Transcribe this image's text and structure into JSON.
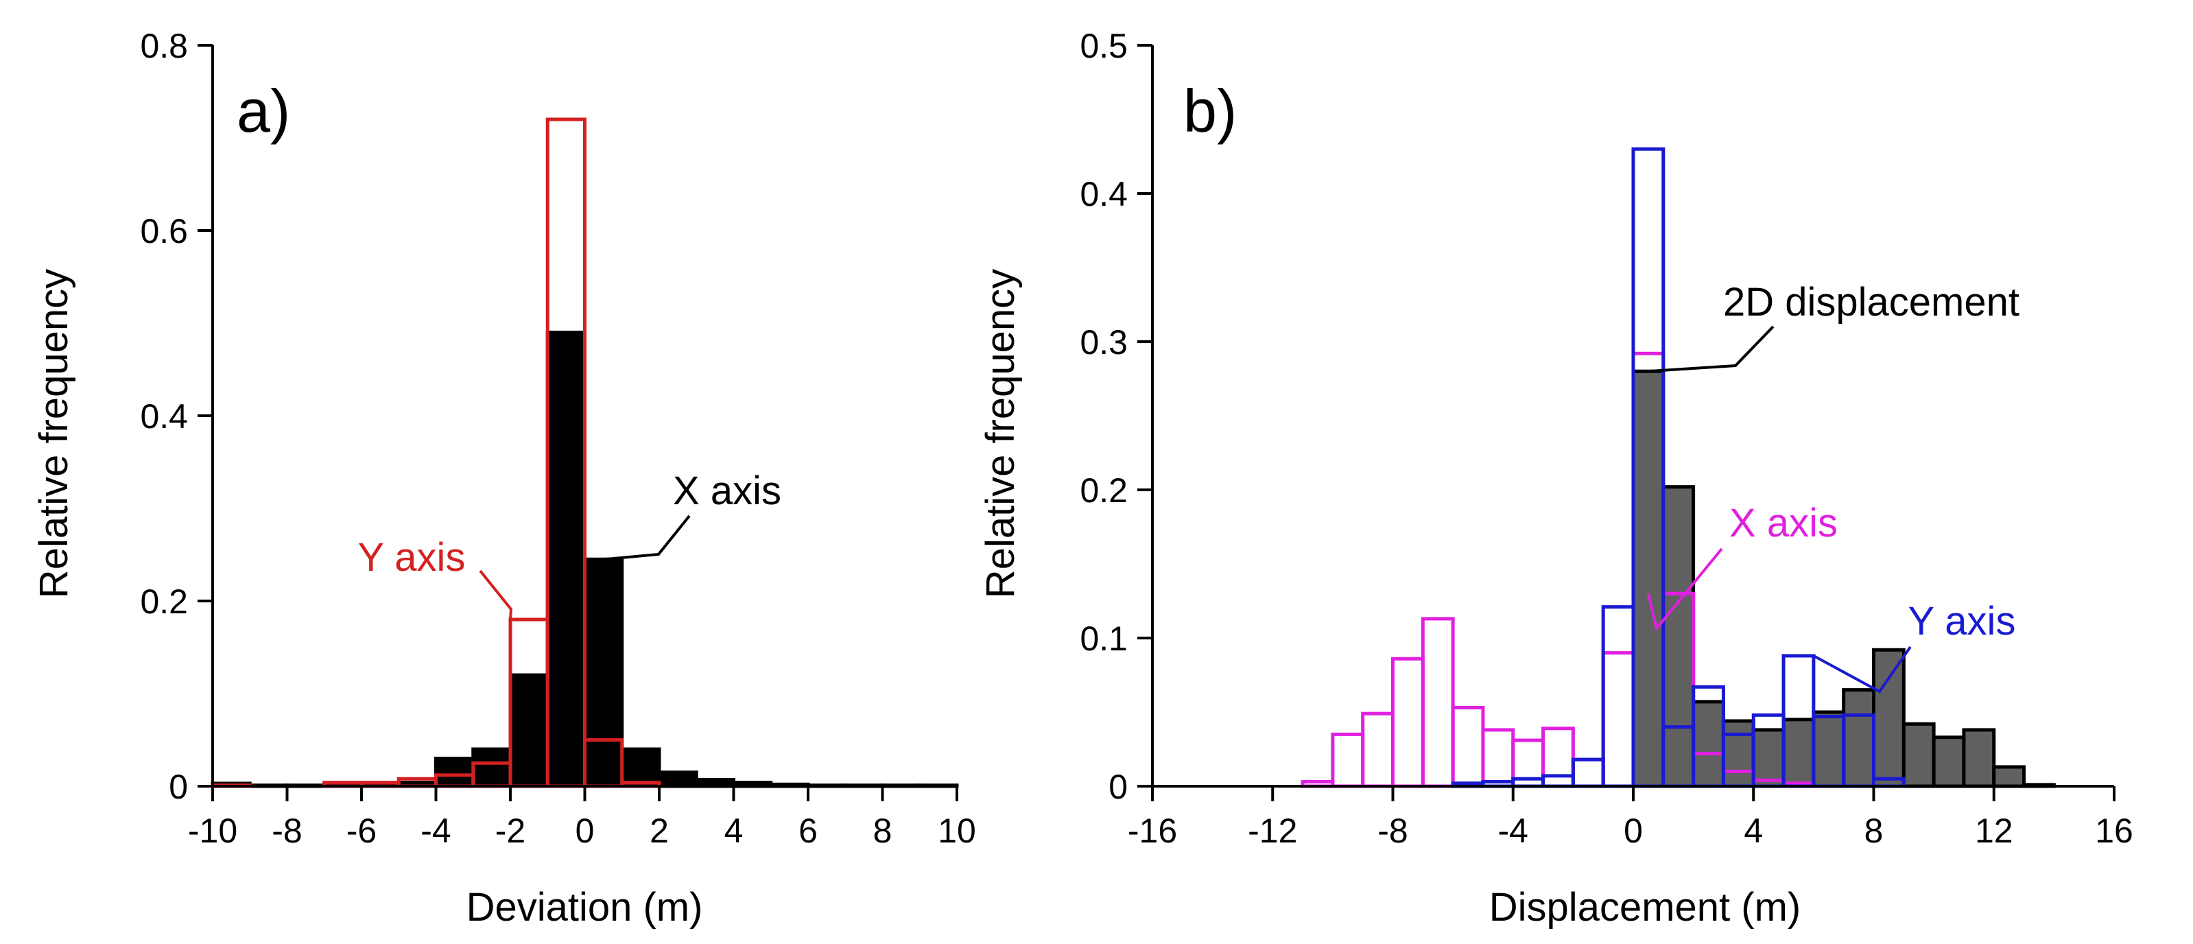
{
  "chart_data": [
    {
      "panel": "a)",
      "type": "bar",
      "title": "",
      "xlabel": "Deviation (m)",
      "ylabel": "Relative frequency",
      "xlim": [
        -10,
        10
      ],
      "ylim": [
        0,
        0.8
      ],
      "xticks": [
        -10,
        -8,
        -6,
        -4,
        -2,
        0,
        2,
        4,
        6,
        8,
        10
      ],
      "yticks": [
        0,
        0.2,
        0.4,
        0.6,
        0.8
      ],
      "ytick_labels": [
        "0",
        "0.2",
        "0.4",
        "0.6",
        "0.8"
      ],
      "bin_width": 1,
      "series": [
        {
          "name": "X axis",
          "style": "filled",
          "fill": "#000000",
          "stroke": "#000000",
          "bins": [
            {
              "x": -10,
              "value": 0.003
            },
            {
              "x": -9,
              "value": 0.001
            },
            {
              "x": -8,
              "value": 0.001
            },
            {
              "x": -7,
              "value": 0.002
            },
            {
              "x": -6,
              "value": 0.002
            },
            {
              "x": -5,
              "value": 0.004
            },
            {
              "x": -4,
              "value": 0.03
            },
            {
              "x": -3,
              "value": 0.04
            },
            {
              "x": -2,
              "value": 0.12
            },
            {
              "x": -1,
              "value": 0.49
            },
            {
              "x": 0,
              "value": 0.245
            },
            {
              "x": 1,
              "value": 0.04
            },
            {
              "x": 2,
              "value": 0.015
            },
            {
              "x": 3,
              "value": 0.007
            },
            {
              "x": 4,
              "value": 0.004
            },
            {
              "x": 5,
              "value": 0.002
            },
            {
              "x": 6,
              "value": 0.001
            },
            {
              "x": 7,
              "value": 0.001
            },
            {
              "x": 8,
              "value": 0.001
            },
            {
              "x": 9,
              "value": 0.001
            }
          ]
        },
        {
          "name": "Y axis",
          "style": "outline",
          "fill": "none",
          "stroke": "#d42020",
          "bins": [
            {
              "x": -10,
              "value": 0.001
            },
            {
              "x": -7,
              "value": 0.004
            },
            {
              "x": -6,
              "value": 0.004
            },
            {
              "x": -5,
              "value": 0.008
            },
            {
              "x": -4,
              "value": 0.012
            },
            {
              "x": -3,
              "value": 0.025
            },
            {
              "x": -2,
              "value": 0.18
            },
            {
              "x": -1,
              "value": 0.72
            },
            {
              "x": 0,
              "value": 0.05
            },
            {
              "x": 1,
              "value": 0.004
            }
          ]
        }
      ],
      "annotations": [
        {
          "text": "Y axis",
          "color": "#d42020",
          "target_x": -2,
          "target_y": 0.18
        },
        {
          "text": "X axis",
          "color": "#000000",
          "target_x": 0.5,
          "target_y": 0.245
        }
      ]
    },
    {
      "panel": "b)",
      "type": "bar",
      "title": "",
      "xlabel": "Displacement (m)",
      "ylabel": "Relative frequency",
      "xlim": [
        -16,
        16
      ],
      "ylim": [
        0,
        0.5
      ],
      "xticks": [
        -16,
        -12,
        -8,
        -4,
        0,
        4,
        8,
        12,
        16
      ],
      "yticks": [
        0,
        0.1,
        0.2,
        0.3,
        0.4,
        0.5
      ],
      "ytick_labels": [
        "0",
        "0.1",
        "0.2",
        "0.3",
        "0.4",
        "0.5"
      ],
      "bin_width": 1,
      "series": [
        {
          "name": "2D displacement",
          "style": "filled",
          "fill": "#606060",
          "stroke": "#000000",
          "bins": [
            {
              "x": 0,
              "value": 0.28
            },
            {
              "x": 1,
              "value": 0.202
            },
            {
              "x": 2,
              "value": 0.057
            },
            {
              "x": 3,
              "value": 0.044
            },
            {
              "x": 4,
              "value": 0.038
            },
            {
              "x": 5,
              "value": 0.045
            },
            {
              "x": 6,
              "value": 0.05
            },
            {
              "x": 7,
              "value": 0.065
            },
            {
              "x": 8,
              "value": 0.092
            },
            {
              "x": 9,
              "value": 0.042
            },
            {
              "x": 10,
              "value": 0.033
            },
            {
              "x": 11,
              "value": 0.038
            },
            {
              "x": 12,
              "value": 0.013
            },
            {
              "x": 13,
              "value": 0.001
            }
          ]
        },
        {
          "name": "X axis",
          "style": "outline",
          "fill": "none",
          "stroke": "#e020e0",
          "bins": [
            {
              "x": -11,
              "value": 0.003
            },
            {
              "x": -10,
              "value": 0.035
            },
            {
              "x": -9,
              "value": 0.049
            },
            {
              "x": -8,
              "value": 0.086
            },
            {
              "x": -7,
              "value": 0.113
            },
            {
              "x": -6,
              "value": 0.053
            },
            {
              "x": -5,
              "value": 0.038
            },
            {
              "x": -4,
              "value": 0.031
            },
            {
              "x": -3,
              "value": 0.039
            },
            {
              "x": -2,
              "value": 0.018
            },
            {
              "x": -1,
              "value": 0.09
            },
            {
              "x": 0,
              "value": 0.292
            },
            {
              "x": 1,
              "value": 0.13
            },
            {
              "x": 2,
              "value": 0.022
            },
            {
              "x": 3,
              "value": 0.01
            },
            {
              "x": 4,
              "value": 0.004
            },
            {
              "x": 5,
              "value": 0.002
            }
          ]
        },
        {
          "name": "Y axis",
          "style": "outline",
          "fill": "none",
          "stroke": "#1a1ad0",
          "bins": [
            {
              "x": -6,
              "value": 0.002
            },
            {
              "x": -5,
              "value": 0.003
            },
            {
              "x": -4,
              "value": 0.005
            },
            {
              "x": -3,
              "value": 0.007
            },
            {
              "x": -2,
              "value": 0.018
            },
            {
              "x": -1,
              "value": 0.121
            },
            {
              "x": 0,
              "value": 0.43
            },
            {
              "x": 1,
              "value": 0.04
            },
            {
              "x": 2,
              "value": 0.067
            },
            {
              "x": 3,
              "value": 0.035
            },
            {
              "x": 4,
              "value": 0.048
            },
            {
              "x": 5,
              "value": 0.088
            },
            {
              "x": 6,
              "value": 0.047
            },
            {
              "x": 7,
              "value": 0.048
            },
            {
              "x": 8,
              "value": 0.005
            }
          ]
        }
      ],
      "annotations": [
        {
          "text": "2D displacement",
          "color": "#000000",
          "target_x": 0.5,
          "target_y": 0.28
        },
        {
          "text": "X axis",
          "color": "#e020e0",
          "target_x": 0.5,
          "target_y": 0.13
        },
        {
          "text": "Y axis",
          "color": "#1a1ad0",
          "target_x": 6,
          "target_y": 0.088
        }
      ]
    }
  ]
}
